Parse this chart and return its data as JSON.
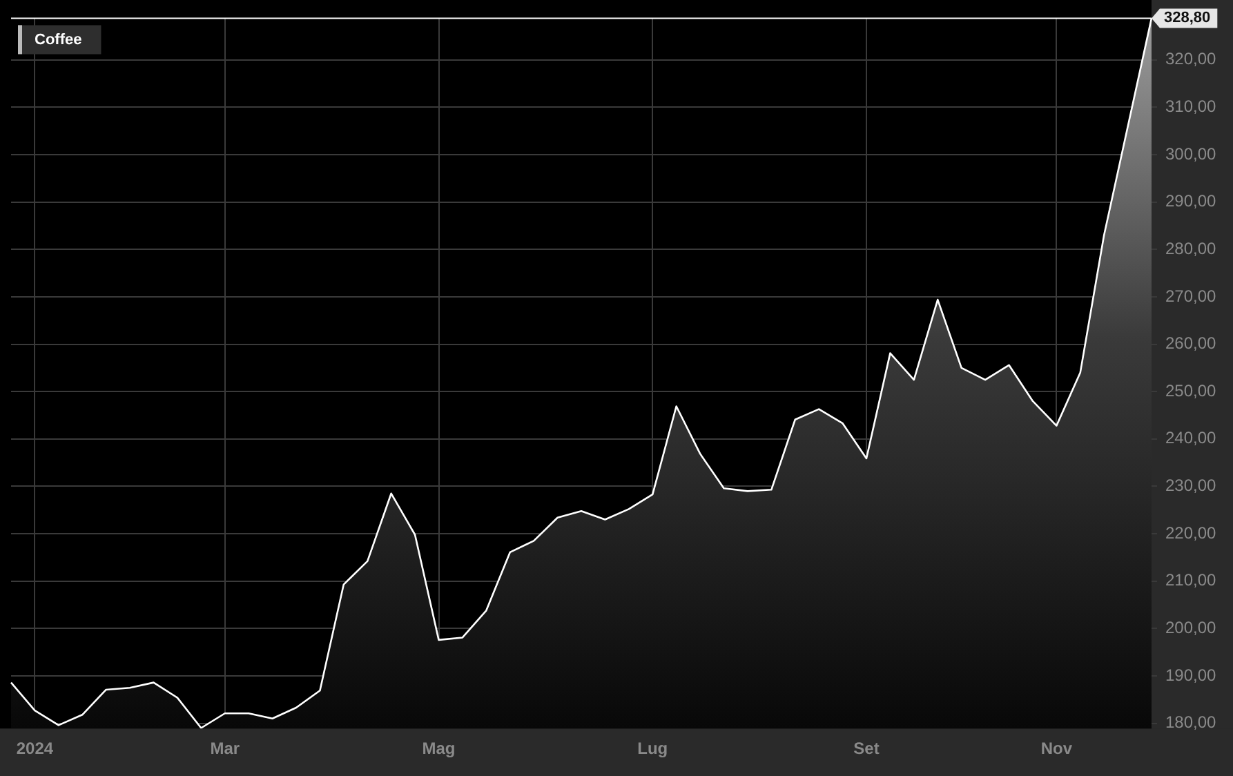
{
  "chart_data": {
    "type": "area",
    "categories": [
      null,
      "2024",
      null,
      null,
      null,
      null,
      null,
      null,
      null,
      "Mar",
      null,
      null,
      null,
      null,
      null,
      null,
      null,
      null,
      "Mag",
      null,
      null,
      null,
      null,
      null,
      null,
      null,
      null,
      "Lug",
      null,
      null,
      null,
      null,
      null,
      null,
      null,
      null,
      "Set",
      null,
      null,
      null,
      null,
      null,
      null,
      null,
      "Nov",
      null,
      null,
      null,
      null
    ],
    "series": [
      {
        "name": "Coffee",
        "color": "#ffffff",
        "values": [
          188.6,
          182.7,
          179.6,
          181.8,
          187.1,
          187.5,
          188.6,
          185.4,
          179.0,
          182.1,
          182.1,
          181.0,
          183.3,
          186.9,
          209.3,
          214.2,
          228.5,
          219.8,
          197.6,
          198.1,
          203.8,
          216.1,
          218.5,
          223.4,
          224.8,
          223.0,
          225.2,
          228.3,
          246.9,
          236.9,
          229.6,
          229.0,
          229.3,
          244.1,
          246.3,
          243.3,
          235.9,
          258.1,
          252.5,
          269.4,
          255.0,
          252.5,
          255.6,
          248.0,
          242.8,
          254.0,
          283.0,
          305.9,
          328.8
        ]
      }
    ],
    "ylim": [
      178.9,
      328.8
    ],
    "yticks": [
      {
        "value": 180,
        "label": "180,00"
      },
      {
        "value": 190,
        "label": "190,00"
      },
      {
        "value": 200,
        "label": "200,00"
      },
      {
        "value": 210,
        "label": "210,00"
      },
      {
        "value": 220,
        "label": "220,00"
      },
      {
        "value": 230,
        "label": "230,00"
      },
      {
        "value": 240,
        "label": "240,00"
      },
      {
        "value": 250,
        "label": "250,00"
      },
      {
        "value": 260,
        "label": "260,00"
      },
      {
        "value": 270,
        "label": "270,00"
      },
      {
        "value": 280,
        "label": "280,00"
      },
      {
        "value": 290,
        "label": "290,00"
      },
      {
        "value": 300,
        "label": "300,00"
      },
      {
        "value": 310,
        "label": "310,00"
      },
      {
        "value": 320,
        "label": "320,00"
      }
    ],
    "ref_lines": [
      {
        "axis": "y",
        "value": 328.8,
        "label": "328,80",
        "color": "#ffffff"
      }
    ],
    "grid": true,
    "legend": "top left"
  }
}
